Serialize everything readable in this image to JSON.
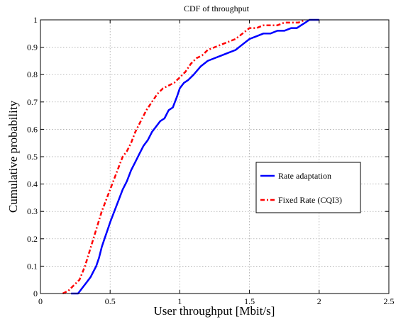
{
  "chart_data": {
    "type": "line",
    "title": "CDF of throughput",
    "xlabel": "User throughput [Mbit/s]",
    "ylabel": "Cumulative probability",
    "xlim": [
      0,
      2.5
    ],
    "ylim": [
      0,
      1
    ],
    "xticks": [
      0,
      0.5,
      1,
      1.5,
      2,
      2.5
    ],
    "xtick_labels": [
      "0",
      "0.5",
      "1",
      "1.5",
      "2",
      "2.5"
    ],
    "yticks": [
      0,
      0.1,
      0.2,
      0.3,
      0.4,
      0.5,
      0.6,
      0.7,
      0.8,
      0.9,
      1
    ],
    "ytick_labels": [
      "0",
      "0.1",
      "0.2",
      "0.3",
      "0.4",
      "0.5",
      "0.6",
      "0.7",
      "0.8",
      "0.9",
      "1"
    ],
    "grid": true,
    "legend_position": "right",
    "series": [
      {
        "name": "Rate adaptation",
        "color": "#0000ff",
        "line_style": "solid",
        "x": [
          0.22,
          0.27,
          0.3,
          0.33,
          0.36,
          0.38,
          0.4,
          0.42,
          0.44,
          0.46,
          0.48,
          0.5,
          0.53,
          0.56,
          0.59,
          0.62,
          0.65,
          0.68,
          0.71,
          0.74,
          0.77,
          0.8,
          0.83,
          0.86,
          0.89,
          0.92,
          0.95,
          0.98,
          1.0,
          1.03,
          1.06,
          1.1,
          1.15,
          1.2,
          1.25,
          1.3,
          1.35,
          1.4,
          1.45,
          1.5,
          1.55,
          1.6,
          1.65,
          1.7,
          1.75,
          1.8,
          1.84,
          1.87,
          1.9,
          1.93,
          2.0
        ],
        "y": [
          0.0,
          0.0,
          0.02,
          0.04,
          0.06,
          0.08,
          0.1,
          0.13,
          0.17,
          0.2,
          0.23,
          0.26,
          0.3,
          0.34,
          0.38,
          0.41,
          0.45,
          0.48,
          0.51,
          0.54,
          0.56,
          0.59,
          0.61,
          0.63,
          0.64,
          0.67,
          0.68,
          0.72,
          0.75,
          0.77,
          0.78,
          0.8,
          0.83,
          0.85,
          0.86,
          0.87,
          0.88,
          0.89,
          0.91,
          0.93,
          0.94,
          0.95,
          0.95,
          0.96,
          0.96,
          0.97,
          0.97,
          0.98,
          0.99,
          1.0,
          1.0
        ]
      },
      {
        "name": "Fixed Rate (CQI3)",
        "color": "#ff0000",
        "line_style": "dash-dot",
        "x": [
          0.16,
          0.2,
          0.24,
          0.28,
          0.32,
          0.35,
          0.38,
          0.41,
          0.44,
          0.47,
          0.5,
          0.53,
          0.56,
          0.59,
          0.62,
          0.65,
          0.68,
          0.72,
          0.76,
          0.8,
          0.84,
          0.88,
          0.92,
          0.96,
          1.0,
          1.04,
          1.08,
          1.12,
          1.16,
          1.2,
          1.25,
          1.3,
          1.35,
          1.4,
          1.45,
          1.5,
          1.55,
          1.6,
          1.65,
          1.7,
          1.75,
          1.8,
          1.85,
          1.9
        ],
        "y": [
          0.0,
          0.01,
          0.03,
          0.05,
          0.1,
          0.15,
          0.2,
          0.25,
          0.3,
          0.34,
          0.38,
          0.42,
          0.46,
          0.5,
          0.52,
          0.55,
          0.59,
          0.63,
          0.67,
          0.7,
          0.73,
          0.75,
          0.76,
          0.77,
          0.79,
          0.81,
          0.84,
          0.86,
          0.87,
          0.89,
          0.9,
          0.91,
          0.92,
          0.93,
          0.95,
          0.97,
          0.97,
          0.98,
          0.98,
          0.98,
          0.99,
          0.99,
          0.99,
          1.0
        ]
      }
    ]
  }
}
